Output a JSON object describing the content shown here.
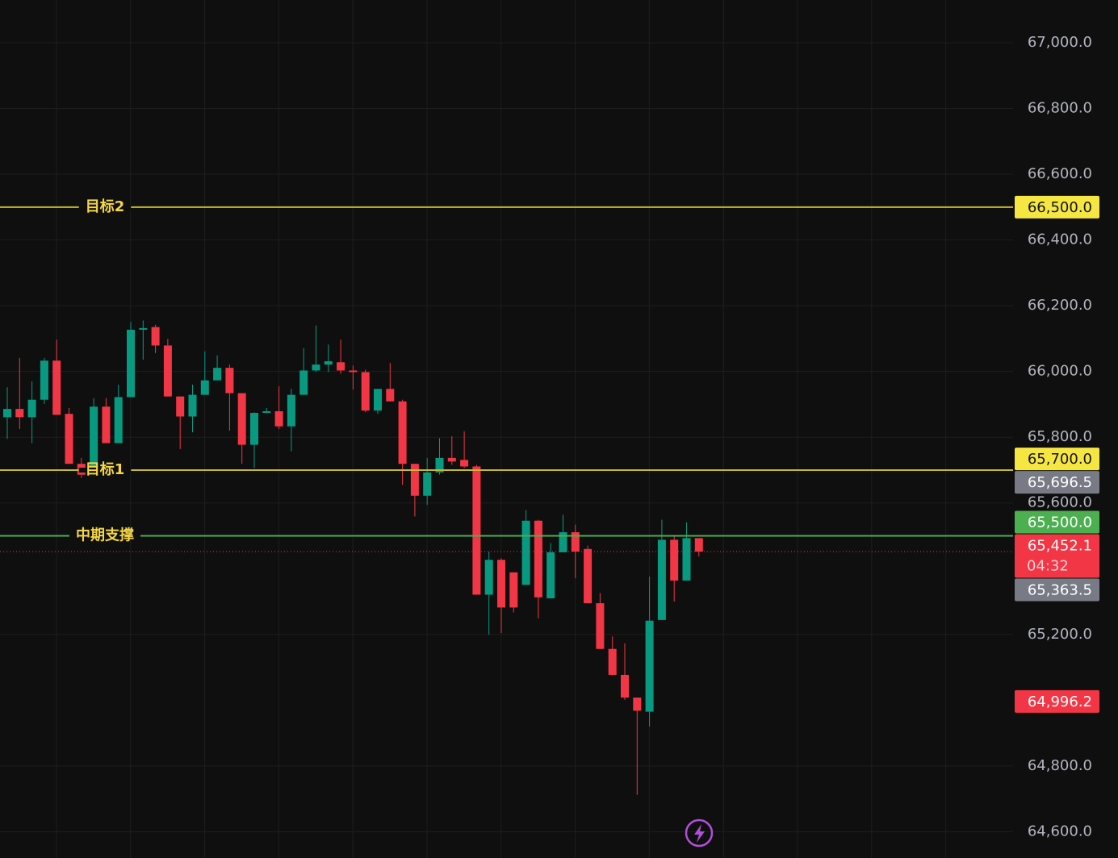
{
  "chart_data": {
    "type": "candlestick",
    "up_color": "#089981",
    "down_color": "#f23645",
    "open": [
      65861,
      65886,
      65861,
      65914,
      66033,
      65871,
      65719,
      65706,
      65893,
      65782,
      65922,
      66127,
      66135,
      66079,
      65924,
      65863,
      65929,
      65973,
      66011,
      65934,
      65777,
      65874,
      65879,
      65833,
      65929,
      66003,
      66021,
      66028,
      66003,
      65998,
      65881,
      65947,
      65909,
      65719,
      65622,
      65693,
      65737,
      65731,
      65711,
      65321,
      65427,
      65389,
      65351,
      65546,
      65310,
      65450,
      65511,
      65460,
      65295,
      65156,
      65077,
      65008,
      64965,
      65244,
      65488,
      65364,
      65493
    ],
    "high": [
      65952,
      66041,
      65970,
      66041,
      66097,
      65889,
      65737,
      65919,
      65919,
      65960,
      66150,
      66155,
      66142,
      66099,
      65924,
      65960,
      66061,
      66049,
      66021,
      65934,
      65876,
      65889,
      65955,
      65947,
      66071,
      66140,
      66082,
      66097,
      66018,
      66005,
      65947,
      66026,
      65914,
      65719,
      65737,
      65797,
      65803,
      65818,
      65716,
      65452,
      65432,
      65389,
      65579,
      65549,
      65478,
      65564,
      65534,
      65470,
      65326,
      65194,
      65173,
      65008,
      65376,
      65549,
      65503,
      65541,
      65493
    ],
    "low": [
      65795,
      65825,
      65782,
      65901,
      65868,
      65719,
      65676,
      65706,
      65782,
      65782,
      65922,
      66036,
      66056,
      65924,
      65764,
      65815,
      65929,
      65973,
      65820,
      65719,
      65706,
      65874,
      65825,
      65757,
      65929,
      65998,
      65998,
      65993,
      65945,
      65876,
      65871,
      65909,
      65655,
      65559,
      65594,
      65686,
      65716,
      65706,
      65321,
      65199,
      65204,
      65267,
      65351,
      65249,
      65310,
      65450,
      65371,
      65295,
      65156,
      65077,
      65001,
      64712,
      64920,
      65244,
      65300,
      65364,
      65437
    ],
    "close": [
      65886,
      65861,
      65914,
      66033,
      65868,
      65719,
      65686,
      65893,
      65782,
      65922,
      66127,
      66132,
      66079,
      65924,
      65863,
      65929,
      65973,
      66011,
      65934,
      65777,
      65874,
      65879,
      65833,
      65929,
      66003,
      66021,
      66031,
      66003,
      65998,
      65881,
      65947,
      65909,
      65719,
      65622,
      65693,
      65737,
      65726,
      65711,
      65321,
      65427,
      65282,
      65282,
      65546,
      65313,
      65450,
      65511,
      65452,
      65295,
      65156,
      65077,
      65008,
      64968,
      65242,
      65488,
      65364,
      65493,
      65452.1
    ],
    "ylim": [
      64520,
      67130
    ],
    "yticks": [
      {
        "value": 67000,
        "label": "67,000.0"
      },
      {
        "value": 66800,
        "label": "66,800.0"
      },
      {
        "value": 66600,
        "label": "66,600.0"
      },
      {
        "value": 66400,
        "label": "66,400.0"
      },
      {
        "value": 66200,
        "label": "66,200.0"
      },
      {
        "value": 66000,
        "label": "66,000.0"
      },
      {
        "value": 65800,
        "label": "65,800.0"
      },
      {
        "value": 65600,
        "label": "65,600.0"
      },
      {
        "value": 65200,
        "label": "65,200.0"
      },
      {
        "value": 64800,
        "label": "64,800.0"
      },
      {
        "value": 64600,
        "label": "64,600.0"
      }
    ],
    "grid": true,
    "levels": [
      {
        "label": "目标2",
        "value": 66500,
        "value_label": "66,500.0",
        "color": "#f5e642"
      },
      {
        "label": "目标1",
        "value": 65700,
        "value_label": "65,700.0",
        "color": "#f5e642"
      },
      {
        "label": "中期支撑",
        "value": 65500,
        "value_label": "65,500.0",
        "color": "#4caf50"
      }
    ],
    "price_badges": [
      {
        "value": 65696.5,
        "label": "65,696.5",
        "color": "#787b86"
      },
      {
        "value": 65452.1,
        "label": "65,452.1",
        "countdown": "04:32",
        "color": "#f23645"
      },
      {
        "value": 65363.5,
        "label": "65,363.5",
        "color": "#787b86"
      },
      {
        "value": 64996.2,
        "label": "64,996.2",
        "color": "#f23645"
      }
    ]
  }
}
